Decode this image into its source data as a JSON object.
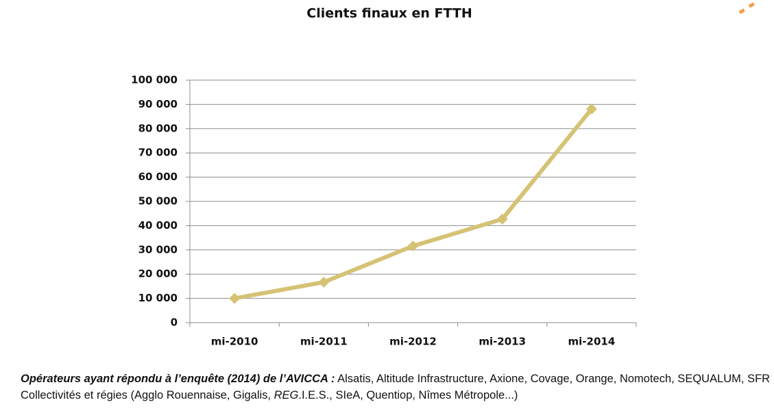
{
  "chart_data": {
    "type": "line",
    "title": "Clients finaux en FTTH",
    "categories": [
      "mi-2010",
      "mi-2011",
      "mi-2012",
      "mi-2013",
      "mi-2014"
    ],
    "values": [
      10000,
      16700,
      31600,
      42700,
      88100
    ],
    "color": "#d5c274",
    "ylim": [
      0,
      100000
    ],
    "yticks": [
      0,
      {
        "value": 10000,
        "label": "10 000"
      },
      {
        "value": 20000,
        "label": "20 000"
      },
      {
        "value": 30000,
        "label": "30 000"
      },
      {
        "value": 40000,
        "label": "40 000"
      },
      {
        "value": 50000,
        "label": "50 000"
      },
      {
        "value": 60000,
        "label": "60 000"
      },
      {
        "value": 70000,
        "label": "70 000"
      },
      {
        "value": 80000,
        "label": "80 000"
      },
      {
        "value": 90000,
        "label": "90 000"
      },
      {
        "value": 100000,
        "label": "100 000"
      }
    ],
    "grid": true
  },
  "footnote": {
    "lead": "Opérateurs ayant répondu à l’enquête (2014) de l’AVICCA :",
    "text_1": "Alsatis, Altitude Infrastructure, Axione, Covage, Orange, Nomotech, SEQUALUM, SFR Collectivités et régies (Agglo Rouennaise, Gigalis,",
    "italic": "REG",
    "text_2": ".I.E.S., SIeA, Quentiop, Nîmes Métropole...)"
  }
}
